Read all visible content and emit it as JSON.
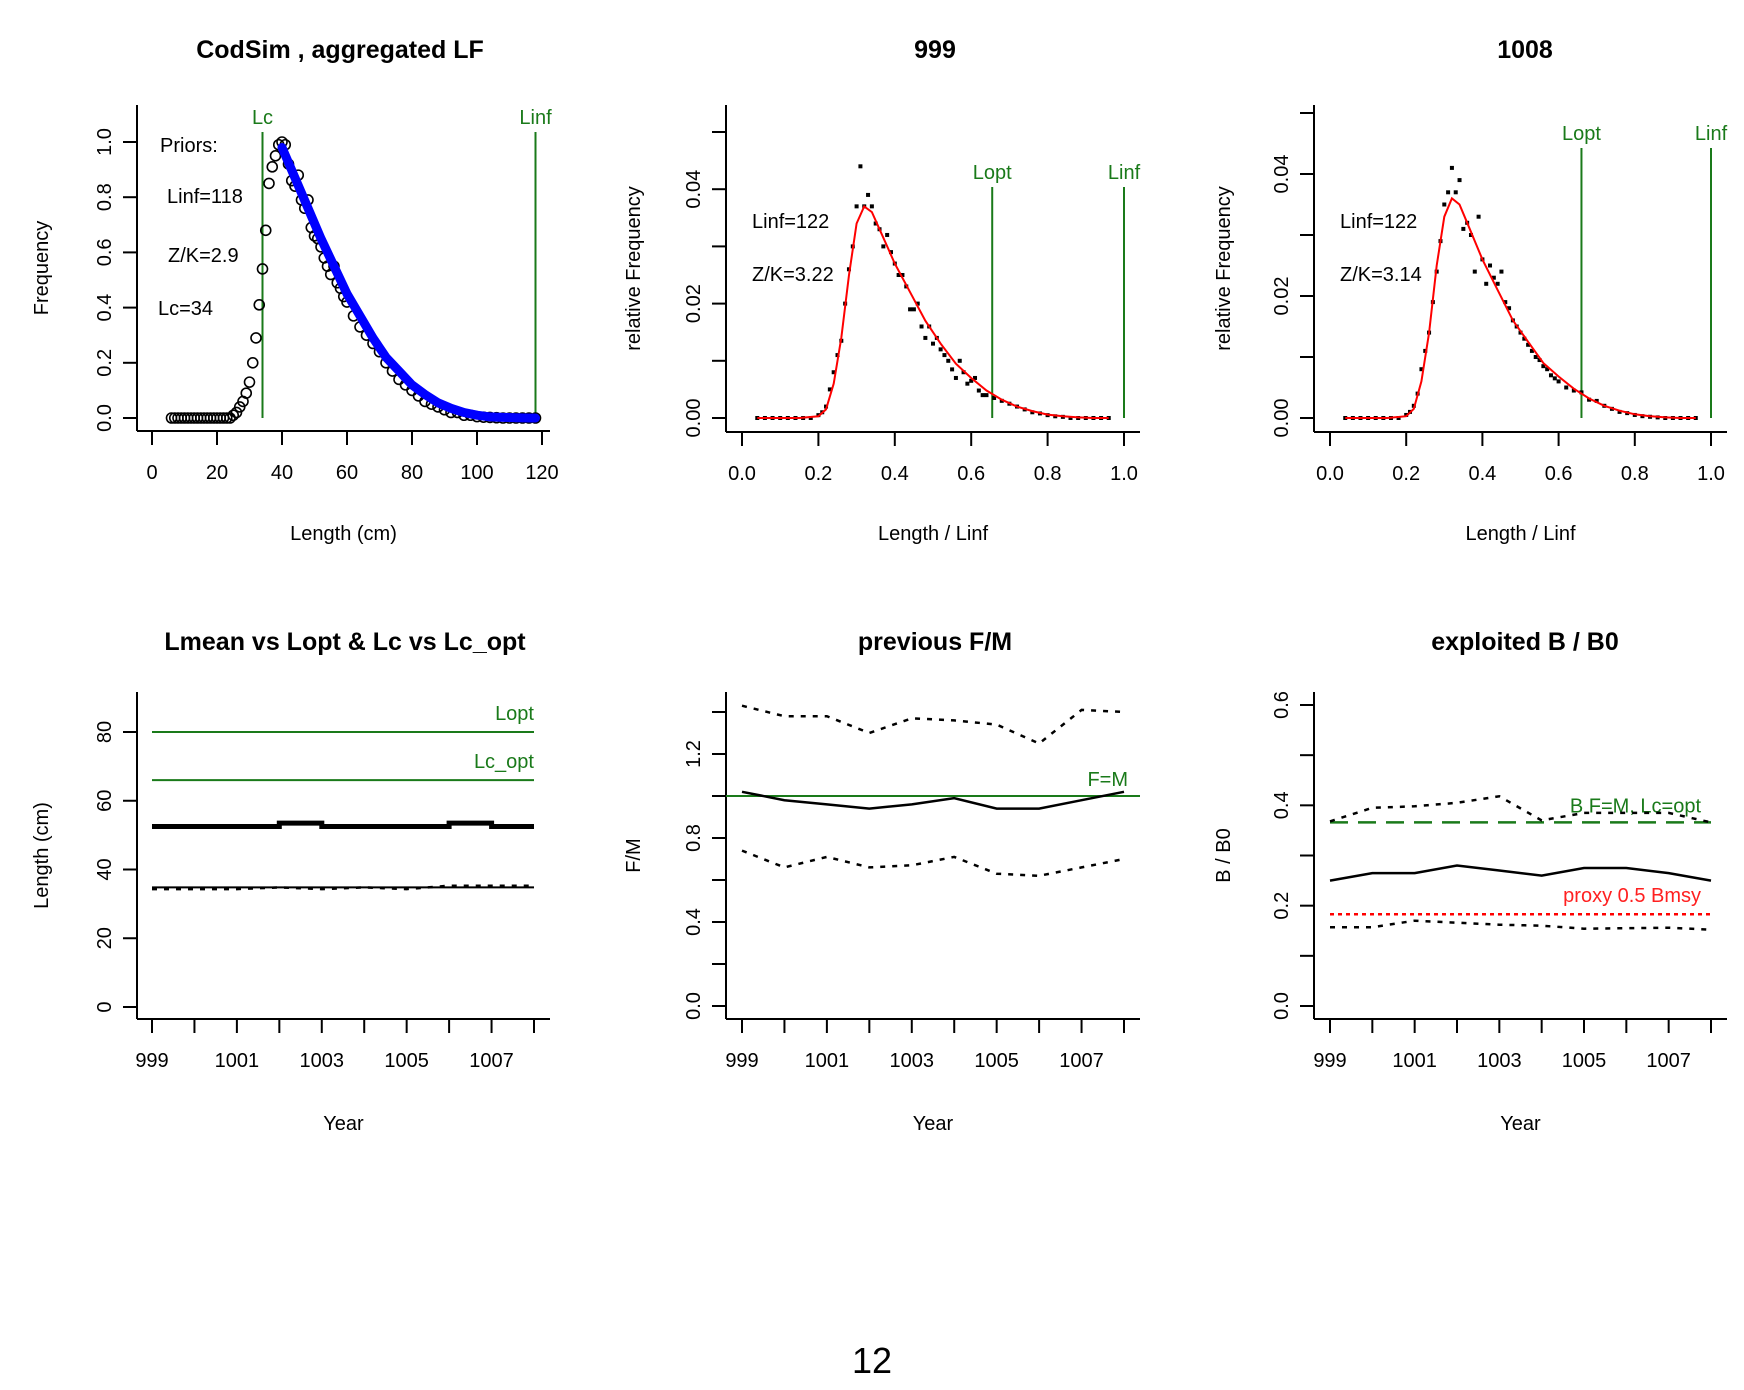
{
  "page": {
    "number": "12"
  },
  "colors": {
    "green": "#1a7a1a",
    "red": "#ff0000",
    "blue": "#0000ff",
    "black": "#000000"
  },
  "chart_data": [
    {
      "id": "lf",
      "type": "scatter",
      "title": "CodSim , aggregated LF",
      "xlabel": "Length (cm)",
      "ylabel": "Frequency",
      "xlim": [
        0,
        120
      ],
      "ylim": [
        0,
        1.0
      ],
      "xticks": [
        0,
        20,
        40,
        60,
        80,
        100,
        120
      ],
      "xtick_labels": [
        "0",
        "20",
        "40",
        "60",
        "80",
        "100",
        "120"
      ],
      "yticks": [
        0,
        0.2,
        0.4,
        0.6,
        0.8,
        1.0
      ],
      "ytick_labels": [
        "0.0",
        "0.2",
        "0.4",
        "0.6",
        "0.8",
        "1.0"
      ],
      "annotations": [
        "Priors:",
        "Linf=118",
        "Z/K=2.9",
        "Lc=34"
      ],
      "vlines": [
        {
          "label": "Lc",
          "x": 34
        },
        {
          "label": "Linf",
          "x": 118
        }
      ],
      "points": {
        "x": [
          6,
          7,
          8,
          9,
          10,
          11,
          12,
          13,
          14,
          15,
          16,
          17,
          18,
          19,
          20,
          21,
          22,
          23,
          24,
          25,
          26,
          27,
          28,
          29,
          30,
          31,
          32,
          33,
          34,
          35,
          36,
          37,
          38,
          39,
          40,
          41,
          42,
          43,
          44,
          45,
          46,
          47,
          48,
          49,
          50,
          51,
          52,
          53,
          54,
          55,
          56,
          57,
          58,
          59,
          60,
          62,
          64,
          66,
          68,
          70,
          72,
          74,
          76,
          78,
          80,
          82,
          84,
          86,
          88,
          90,
          92,
          94,
          96,
          98,
          100,
          102,
          104,
          106,
          108,
          110,
          112,
          114,
          116,
          118
        ],
        "y": [
          0,
          0,
          0,
          0,
          0,
          0,
          0,
          0,
          0,
          0,
          0,
          0,
          0,
          0,
          0,
          0,
          0,
          0,
          0,
          0.01,
          0.02,
          0.04,
          0.06,
          0.09,
          0.13,
          0.2,
          0.29,
          0.41,
          0.54,
          0.68,
          0.85,
          0.91,
          0.95,
          0.99,
          1.0,
          0.99,
          0.92,
          0.86,
          0.84,
          0.88,
          0.79,
          0.76,
          0.79,
          0.69,
          0.66,
          0.65,
          0.62,
          0.58,
          0.55,
          0.52,
          0.55,
          0.49,
          0.47,
          0.44,
          0.42,
          0.37,
          0.33,
          0.3,
          0.27,
          0.24,
          0.2,
          0.17,
          0.14,
          0.12,
          0.1,
          0.08,
          0.06,
          0.05,
          0.04,
          0.03,
          0.02,
          0.02,
          0.01,
          0.01,
          0.005,
          0.003,
          0.002,
          0.001,
          0,
          0,
          0,
          0,
          0,
          0
        ]
      },
      "fit": {
        "name": "fitted selectivity curve",
        "x": [
          40,
          44,
          48,
          52,
          56,
          60,
          64,
          68,
          72,
          76,
          80,
          84,
          88,
          92,
          96,
          100,
          104,
          108,
          112,
          116,
          118
        ],
        "y": [
          0.98,
          0.87,
          0.76,
          0.65,
          0.55,
          0.45,
          0.37,
          0.29,
          0.22,
          0.17,
          0.12,
          0.085,
          0.055,
          0.035,
          0.02,
          0.01,
          0.004,
          0.002,
          0.001,
          0,
          0
        ]
      }
    },
    {
      "id": "y999",
      "type": "scatter",
      "title": "999",
      "xlabel": "Length / Linf",
      "ylabel": "relative Frequency",
      "xlim": [
        0,
        1.0
      ],
      "ylim": [
        0,
        0.05
      ],
      "xticks": [
        0,
        0.2,
        0.4,
        0.6,
        0.8,
        1.0
      ],
      "xtick_labels": [
        "0.0",
        "0.2",
        "0.4",
        "0.6",
        "0.8",
        "1.0"
      ],
      "yticks": [
        0,
        0.01,
        0.02,
        0.03,
        0.04,
        0.05
      ],
      "ytick_labels": [
        "0.00",
        "",
        "0.02",
        "",
        "0.04",
        ""
      ],
      "annotations": [
        "Linf=122",
        "Z/K=3.22"
      ],
      "vlines": [
        {
          "label": "Lopt",
          "x": 0.655
        },
        {
          "label": "Linf",
          "x": 1.0
        }
      ],
      "points": {
        "x": [
          0.04,
          0.06,
          0.08,
          0.1,
          0.12,
          0.14,
          0.16,
          0.18,
          0.2,
          0.21,
          0.22,
          0.23,
          0.24,
          0.25,
          0.26,
          0.27,
          0.28,
          0.29,
          0.3,
          0.31,
          0.32,
          0.33,
          0.34,
          0.35,
          0.36,
          0.37,
          0.38,
          0.39,
          0.4,
          0.41,
          0.42,
          0.43,
          0.44,
          0.45,
          0.46,
          0.47,
          0.48,
          0.49,
          0.5,
          0.51,
          0.52,
          0.53,
          0.54,
          0.55,
          0.56,
          0.57,
          0.58,
          0.59,
          0.6,
          0.61,
          0.62,
          0.63,
          0.64,
          0.66,
          0.68,
          0.7,
          0.72,
          0.74,
          0.76,
          0.78,
          0.8,
          0.82,
          0.84,
          0.86,
          0.88,
          0.9,
          0.92,
          0.94,
          0.96
        ],
        "y": [
          0,
          0,
          0,
          0,
          0,
          0,
          0,
          0,
          0.0005,
          0.001,
          0.002,
          0.005,
          0.008,
          0.011,
          0.0135,
          0.02,
          0.026,
          0.03,
          0.037,
          0.044,
          0.037,
          0.039,
          0.037,
          0.034,
          0.033,
          0.03,
          0.032,
          0.029,
          0.027,
          0.025,
          0.025,
          0.023,
          0.019,
          0.019,
          0.02,
          0.016,
          0.014,
          0.016,
          0.013,
          0.014,
          0.012,
          0.011,
          0.01,
          0.0085,
          0.007,
          0.01,
          0.008,
          0.006,
          0.0065,
          0.007,
          0.0048,
          0.004,
          0.004,
          0.0035,
          0.003,
          0.0025,
          0.002,
          0.0015,
          0.001,
          0.0008,
          0.0005,
          0.0003,
          0.0002,
          0,
          0,
          0,
          0,
          0,
          0
        ]
      },
      "fit": {
        "name": "fitted curve",
        "x": [
          0.04,
          0.1,
          0.15,
          0.2,
          0.22,
          0.24,
          0.26,
          0.28,
          0.3,
          0.32,
          0.34,
          0.36,
          0.38,
          0.4,
          0.44,
          0.48,
          0.52,
          0.56,
          0.6,
          0.64,
          0.68,
          0.72,
          0.76,
          0.8,
          0.84,
          0.88,
          0.92,
          0.96
        ],
        "y": [
          0,
          0,
          0,
          0.0003,
          0.0015,
          0.006,
          0.014,
          0.025,
          0.034,
          0.037,
          0.036,
          0.033,
          0.03,
          0.027,
          0.022,
          0.017,
          0.013,
          0.0095,
          0.007,
          0.0048,
          0.0032,
          0.002,
          0.0012,
          0.0006,
          0.0003,
          0.0001,
          0,
          0
        ]
      }
    },
    {
      "id": "y1008",
      "type": "scatter",
      "title": "1008",
      "xlabel": "Length / Linf",
      "ylabel": "relative Frequency",
      "xlim": [
        0,
        1.0
      ],
      "ylim": [
        0,
        0.05
      ],
      "xticks": [
        0,
        0.2,
        0.4,
        0.6,
        0.8,
        1.0
      ],
      "xtick_labels": [
        "0.0",
        "0.2",
        "0.4",
        "0.6",
        "0.8",
        "1.0"
      ],
      "yticks": [
        0,
        0.01,
        0.02,
        0.03,
        0.04,
        0.05
      ],
      "ytick_labels": [
        "0.00",
        "",
        "0.02",
        "",
        "0.04",
        ""
      ],
      "annotations": [
        "Linf=122",
        "Z/K=3.14"
      ],
      "vlines": [
        {
          "label": "Lopt",
          "x": 0.66
        },
        {
          "label": "Linf",
          "x": 1.0
        }
      ],
      "points": {
        "x": [
          0.04,
          0.06,
          0.08,
          0.1,
          0.12,
          0.14,
          0.16,
          0.18,
          0.2,
          0.21,
          0.22,
          0.23,
          0.24,
          0.25,
          0.26,
          0.27,
          0.28,
          0.29,
          0.3,
          0.31,
          0.32,
          0.33,
          0.34,
          0.35,
          0.36,
          0.37,
          0.38,
          0.39,
          0.4,
          0.41,
          0.42,
          0.43,
          0.44,
          0.45,
          0.46,
          0.47,
          0.48,
          0.49,
          0.5,
          0.51,
          0.52,
          0.53,
          0.54,
          0.55,
          0.56,
          0.57,
          0.58,
          0.59,
          0.6,
          0.62,
          0.64,
          0.66,
          0.68,
          0.7,
          0.72,
          0.74,
          0.76,
          0.78,
          0.8,
          0.82,
          0.84,
          0.86,
          0.88,
          0.9,
          0.92,
          0.94,
          0.96
        ],
        "y": [
          0,
          0,
          0,
          0,
          0,
          0,
          0,
          0,
          0.0005,
          0.001,
          0.002,
          0.004,
          0.008,
          0.011,
          0.014,
          0.019,
          0.024,
          0.029,
          0.035,
          0.037,
          0.041,
          0.037,
          0.039,
          0.031,
          0.032,
          0.03,
          0.024,
          0.033,
          0.026,
          0.022,
          0.025,
          0.023,
          0.022,
          0.024,
          0.019,
          0.018,
          0.016,
          0.015,
          0.014,
          0.013,
          0.012,
          0.011,
          0.01,
          0.0095,
          0.0085,
          0.008,
          0.007,
          0.0065,
          0.006,
          0.005,
          0.0045,
          0.0042,
          0.003,
          0.0028,
          0.002,
          0.0015,
          0.001,
          0.0008,
          0.0005,
          0.0003,
          0.0002,
          0.0001,
          0,
          0,
          0,
          0,
          0
        ]
      },
      "fit": {
        "name": "fitted curve",
        "x": [
          0.04,
          0.1,
          0.15,
          0.2,
          0.22,
          0.24,
          0.26,
          0.28,
          0.3,
          0.32,
          0.34,
          0.36,
          0.38,
          0.4,
          0.44,
          0.48,
          0.52,
          0.56,
          0.6,
          0.64,
          0.68,
          0.72,
          0.76,
          0.8,
          0.84,
          0.88,
          0.92,
          0.96
        ],
        "y": [
          0,
          0,
          0,
          0.0003,
          0.0015,
          0.006,
          0.014,
          0.025,
          0.033,
          0.036,
          0.035,
          0.032,
          0.029,
          0.026,
          0.021,
          0.016,
          0.0125,
          0.009,
          0.0068,
          0.0048,
          0.0032,
          0.002,
          0.0012,
          0.0006,
          0.0003,
          0.0001,
          0,
          0
        ]
      }
    },
    {
      "id": "lmean",
      "type": "line",
      "title": "Lmean vs Lopt & Lc vs Lc_opt",
      "xlabel": "Year",
      "ylabel": "Length (cm)",
      "xlim": [
        999,
        1008
      ],
      "ylim": [
        0,
        80
      ],
      "xticks": [
        999,
        1000,
        1001,
        1002,
        1003,
        1004,
        1005,
        1006,
        1007,
        1008
      ],
      "xtick_labels": [
        "999",
        "",
        "1001",
        "",
        "1003",
        "",
        "1005",
        "",
        "1007",
        ""
      ],
      "yticks": [
        0,
        20,
        40,
        60,
        80
      ],
      "ytick_labels": [
        "0",
        "20",
        "40",
        "60",
        "80"
      ],
      "x": [
        999,
        1000,
        1001,
        1002,
        1003,
        1004,
        1005,
        1006,
        1007,
        1008
      ],
      "series": [
        {
          "name": "Lopt",
          "style": "green-solid",
          "values": [
            80,
            80,
            80,
            80,
            80,
            80,
            80,
            80,
            80,
            80
          ],
          "label": "Lopt"
        },
        {
          "name": "Lc_opt",
          "style": "green-solid",
          "values": [
            66,
            66,
            66,
            66,
            66,
            66,
            66,
            66,
            66,
            66
          ],
          "label": "Lc_opt"
        },
        {
          "name": "Lmean",
          "style": "black-thick",
          "values": [
            52.5,
            52.5,
            52.5,
            53.5,
            52.5,
            52.5,
            52.5,
            53.5,
            52.5,
            52.5
          ]
        },
        {
          "name": "Lc",
          "style": "black-thin",
          "values": [
            34.8,
            34.8,
            34.8,
            34.8,
            34.8,
            34.8,
            34.8,
            34.8,
            34.8,
            34.8
          ]
        },
        {
          "name": "Lc estimate",
          "style": "black-dotted",
          "values": [
            34.3,
            34.3,
            34.3,
            34.8,
            34.3,
            34.8,
            34.3,
            35.3,
            35.3,
            35.3
          ]
        }
      ]
    },
    {
      "id": "fm",
      "type": "line",
      "title": "previous F/M",
      "xlabel": "Year",
      "ylabel": "F/M",
      "xlim": [
        999,
        1008
      ],
      "ylim": [
        0,
        1.4
      ],
      "xticks": [
        999,
        1000,
        1001,
        1002,
        1003,
        1004,
        1005,
        1006,
        1007,
        1008
      ],
      "xtick_labels": [
        "999",
        "",
        "1001",
        "",
        "1003",
        "",
        "1005",
        "",
        "1007",
        ""
      ],
      "yticks": [
        0,
        0.2,
        0.4,
        0.6,
        0.8,
        1.0,
        1.2,
        1.4
      ],
      "ytick_labels": [
        "0.0",
        "",
        "0.4",
        "",
        "0.8",
        "",
        "1.2",
        ""
      ],
      "x": [
        999,
        1000,
        1001,
        1002,
        1003,
        1004,
        1005,
        1006,
        1007,
        1008
      ],
      "reference": {
        "label": "F=M",
        "value": 1.0
      },
      "series": [
        {
          "name": "F/M",
          "style": "black-solid",
          "values": [
            1.02,
            0.98,
            0.96,
            0.94,
            0.96,
            0.99,
            0.94,
            0.94,
            0.98,
            1.02
          ]
        },
        {
          "name": "upper",
          "style": "black-dotted",
          "values": [
            1.43,
            1.38,
            1.38,
            1.3,
            1.37,
            1.36,
            1.34,
            1.25,
            1.41,
            1.4
          ]
        },
        {
          "name": "lower",
          "style": "black-dotted",
          "values": [
            0.74,
            0.66,
            0.71,
            0.66,
            0.67,
            0.71,
            0.63,
            0.62,
            0.66,
            0.7
          ]
        }
      ]
    },
    {
      "id": "bb0",
      "type": "line",
      "title": "exploited B / B0",
      "xlabel": "Year",
      "ylabel": "B / B0",
      "xlim": [
        999,
        1008
      ],
      "ylim": [
        0,
        0.6
      ],
      "xticks": [
        999,
        1000,
        1001,
        1002,
        1003,
        1004,
        1005,
        1006,
        1007,
        1008
      ],
      "xtick_labels": [
        "999",
        "",
        "1001",
        "",
        "1003",
        "",
        "1005",
        "",
        "1007",
        ""
      ],
      "yticks": [
        0,
        0.1,
        0.2,
        0.3,
        0.4,
        0.5,
        0.6
      ],
      "ytick_labels": [
        "0.0",
        "",
        "0.2",
        "",
        "0.4",
        "",
        "0.6"
      ],
      "x": [
        999,
        1000,
        1001,
        1002,
        1003,
        1004,
        1005,
        1006,
        1007,
        1008
      ],
      "references": [
        {
          "label": "B F=M, Lc=opt",
          "value": 0.366,
          "style": "green-dashed"
        },
        {
          "label": "proxy 0.5 Bmsy",
          "value": 0.183,
          "style": "red-dotted"
        }
      ],
      "series": [
        {
          "name": "B/B0",
          "style": "black-solid",
          "values": [
            0.25,
            0.265,
            0.265,
            0.28,
            0.27,
            0.26,
            0.275,
            0.275,
            0.265,
            0.25
          ]
        },
        {
          "name": "upper",
          "style": "black-dotted",
          "values": [
            0.368,
            0.395,
            0.398,
            0.405,
            0.418,
            0.37,
            0.385,
            0.385,
            0.385,
            0.366
          ]
        },
        {
          "name": "lower",
          "style": "black-dotted",
          "values": [
            0.157,
            0.157,
            0.17,
            0.166,
            0.162,
            0.16,
            0.154,
            0.155,
            0.156,
            0.152
          ]
        }
      ]
    }
  ]
}
